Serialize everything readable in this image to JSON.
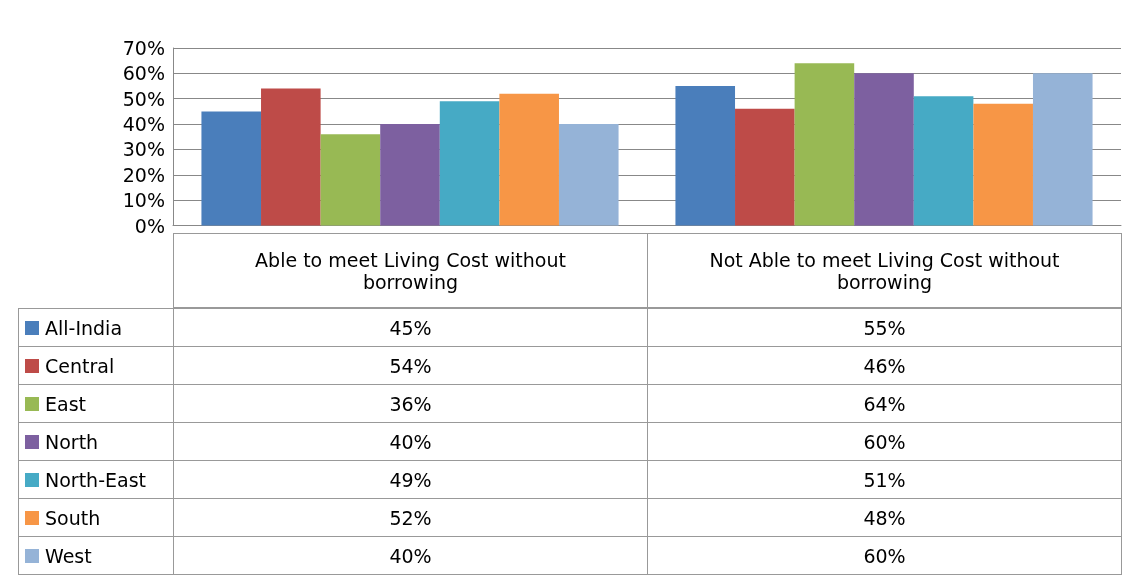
{
  "chart_data": {
    "type": "bar",
    "categories": [
      "Able to meet Living Cost without borrowing",
      "Not Able to meet Living Cost without borrowing"
    ],
    "series": [
      {
        "name": "All-India",
        "color": "#4a7ebb",
        "values": [
          45,
          55
        ],
        "value_labels": [
          "45%",
          "55%"
        ]
      },
      {
        "name": "Central",
        "color": "#be4b48",
        "values": [
          54,
          46
        ],
        "value_labels": [
          "54%",
          "46%"
        ]
      },
      {
        "name": "East",
        "color": "#98b954",
        "values": [
          36,
          64
        ],
        "value_labels": [
          "36%",
          "64%"
        ]
      },
      {
        "name": "North",
        "color": "#7d60a0",
        "values": [
          40,
          60
        ],
        "value_labels": [
          "40%",
          "60%"
        ]
      },
      {
        "name": "North-East",
        "color": "#46aac5",
        "values": [
          49,
          51
        ],
        "value_labels": [
          "49%",
          "51%"
        ]
      },
      {
        "name": "South",
        "color": "#f79646",
        "values": [
          52,
          48
        ],
        "value_labels": [
          "52%",
          "48%"
        ]
      },
      {
        "name": "West",
        "color": "#95b3d7",
        "values": [
          40,
          60
        ],
        "value_labels": [
          "40%",
          "60%"
        ]
      }
    ],
    "ylim": [
      0,
      70
    ],
    "yticks": [
      {
        "value": 0,
        "label": "0%"
      },
      {
        "value": 10,
        "label": "10%"
      },
      {
        "value": 20,
        "label": "20%"
      },
      {
        "value": 30,
        "label": "30%"
      },
      {
        "value": 40,
        "label": "40%"
      },
      {
        "value": 50,
        "label": "50%"
      },
      {
        "value": 60,
        "label": "60%"
      },
      {
        "value": 70,
        "label": "70%"
      }
    ],
    "grid": "y",
    "legend": "bottom left"
  }
}
